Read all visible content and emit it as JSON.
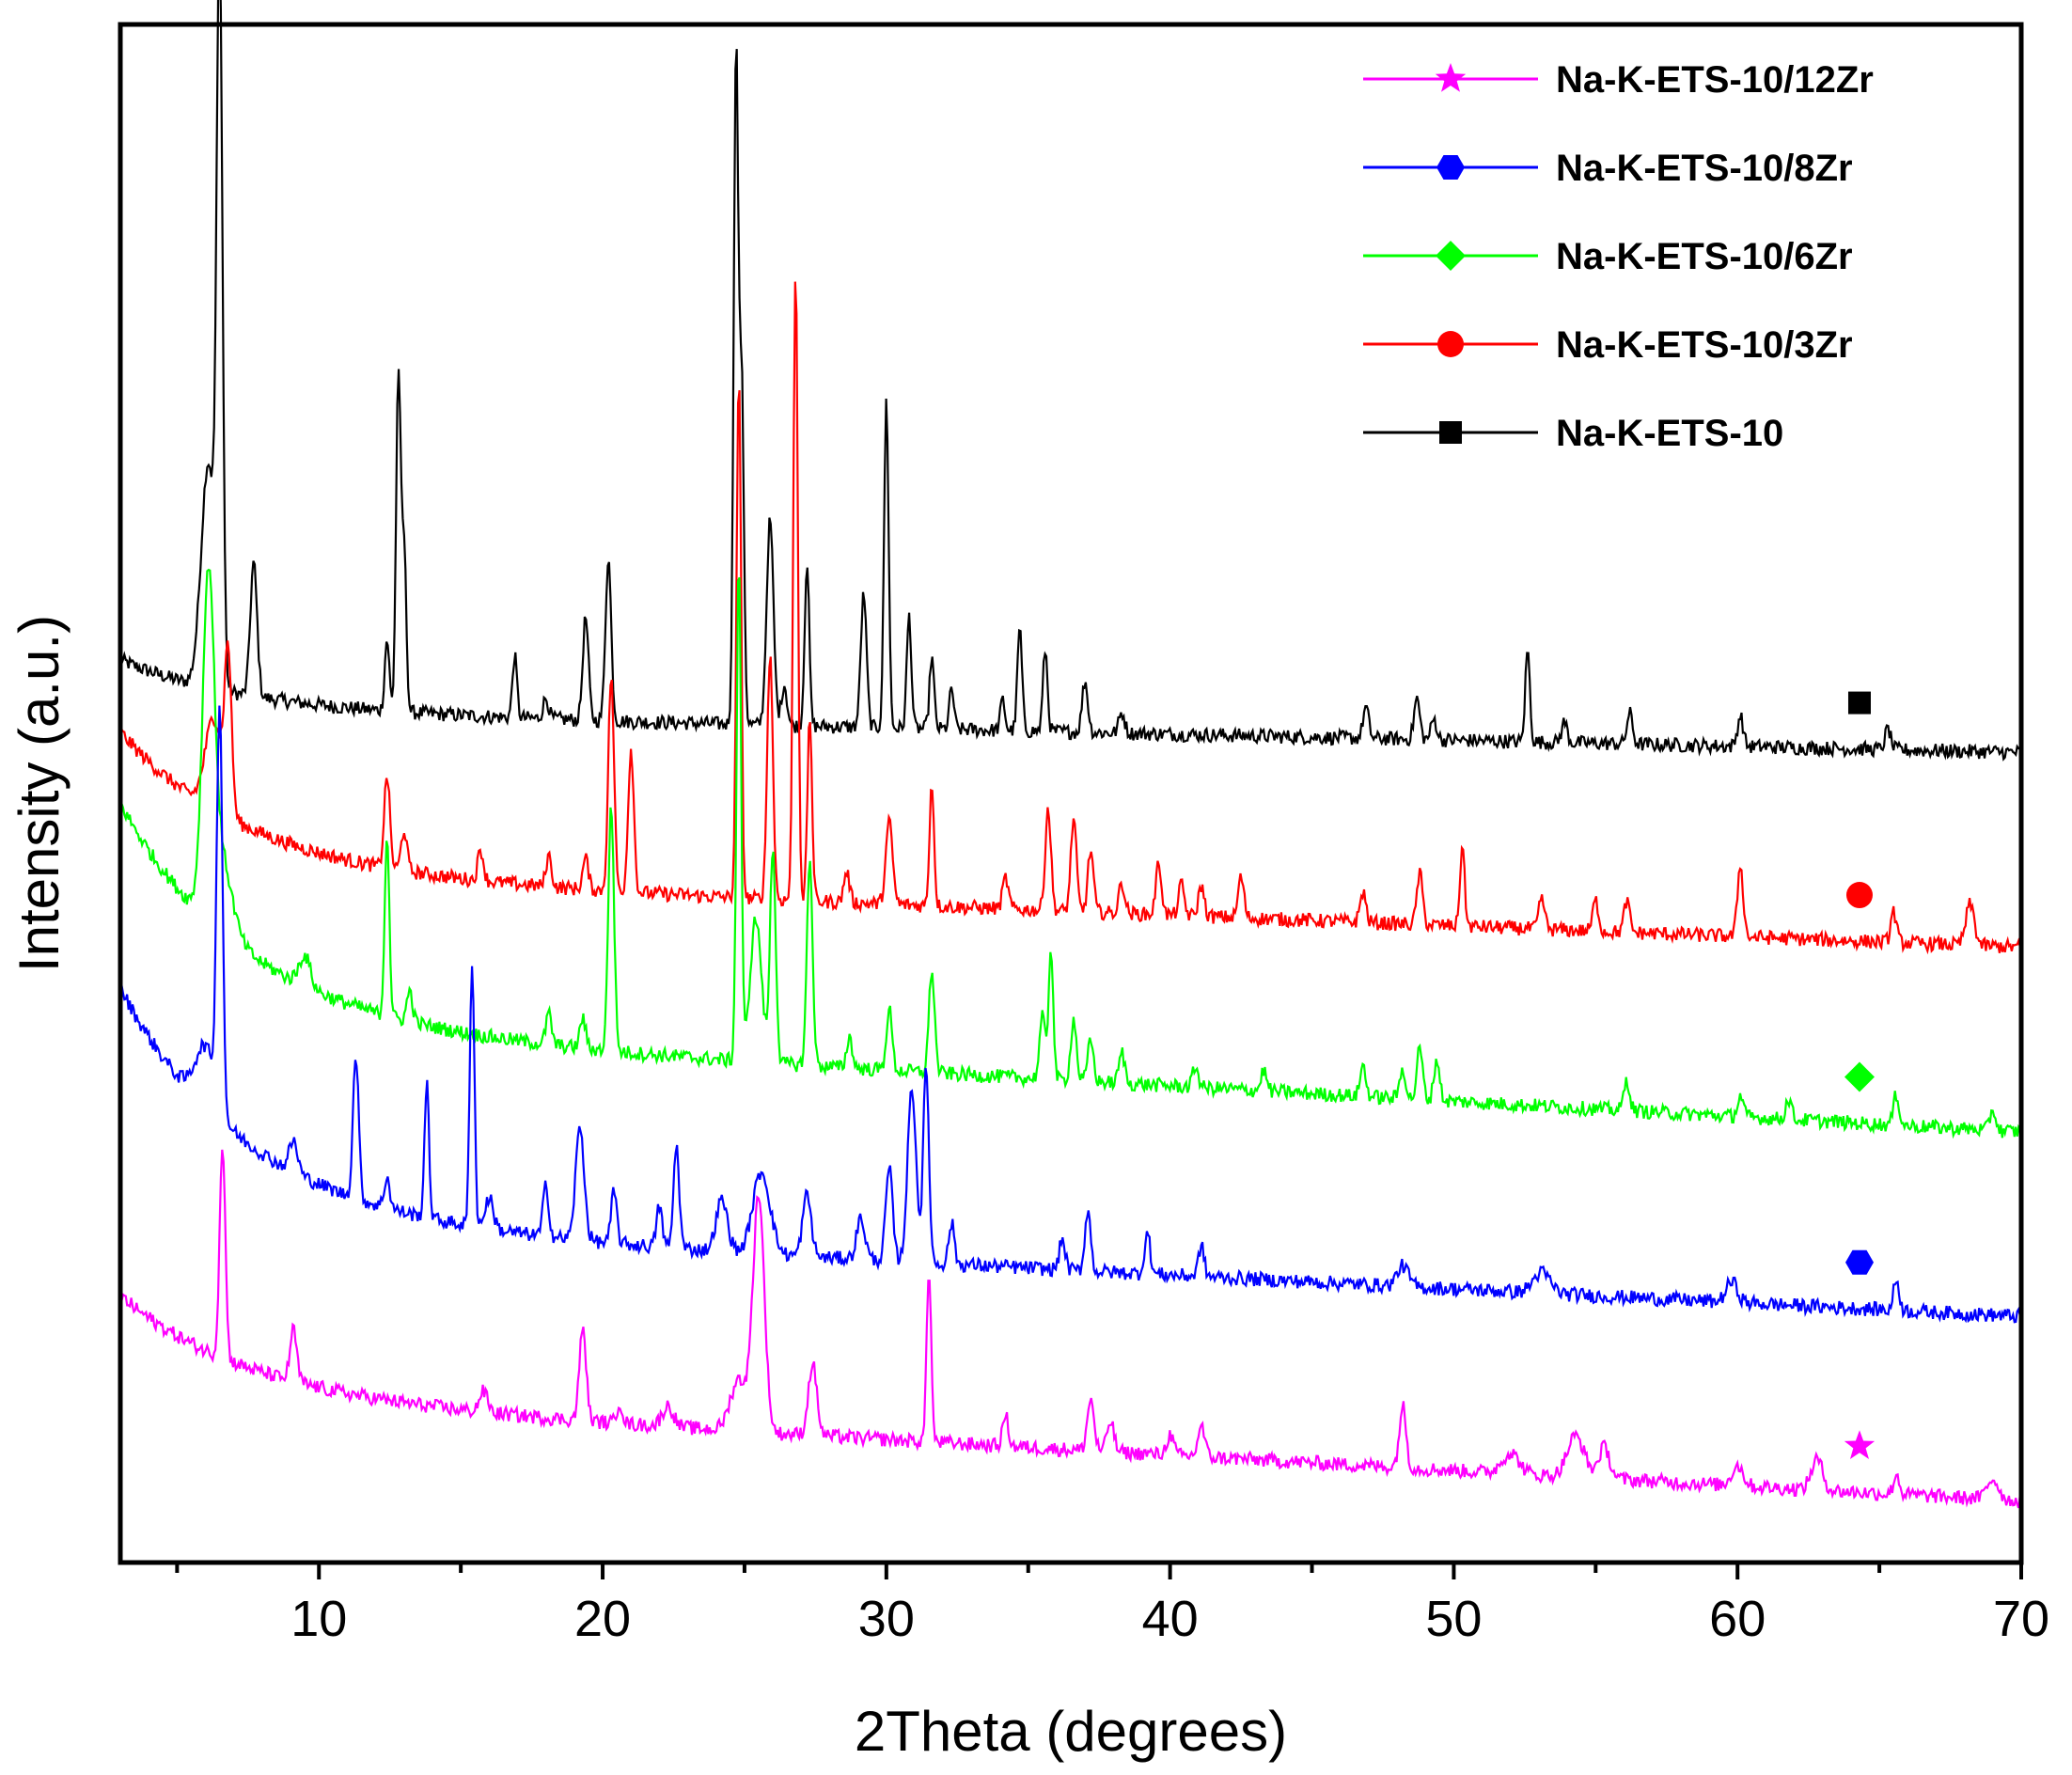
{
  "chart_data": {
    "type": "line",
    "title": "",
    "xlabel": "2Theta (degrees)",
    "ylabel": "Intensity (a.u.)",
    "xlim": [
      3,
      70
    ],
    "ylim": [
      0,
      15
    ],
    "x_ticks": [
      10,
      20,
      30,
      40,
      50,
      60,
      70
    ],
    "x_tick_labels": [
      "10",
      "20",
      "30",
      "40",
      "50",
      "60",
      "70"
    ],
    "y_ticks_shown": false,
    "grid": false,
    "legend_position": "top-right",
    "legend_order": [
      "Na-K-ETS-10/12Zr",
      "Na-K-ETS-10/8Zr",
      "Na-K-ETS-10/6Zr",
      "Na-K-ETS-10/3Zr",
      "Na-K-ETS-10"
    ],
    "series": [
      {
        "name": "Na-K-ETS-10",
        "color": "#000000",
        "marker": "square",
        "marker_x": 64.3,
        "baseline_start": 8.3,
        "baseline_end": 7.9,
        "decay": 0.5,
        "peaks": [
          [
            6.1,
            2.2,
            0.25
          ],
          [
            6.5,
            6.8,
            0.1
          ],
          [
            7.7,
            1.3,
            0.12
          ],
          [
            12.4,
            0.7,
            0.08
          ],
          [
            12.8,
            3.3,
            0.08
          ],
          [
            13.0,
            1.6,
            0.08
          ],
          [
            16.9,
            0.6,
            0.08
          ],
          [
            18.0,
            0.2,
            0.1
          ],
          [
            19.4,
            1.0,
            0.1
          ],
          [
            20.2,
            1.6,
            0.1
          ],
          [
            24.7,
            6.6,
            0.08
          ],
          [
            24.9,
            3.3,
            0.08
          ],
          [
            25.9,
            2.0,
            0.12
          ],
          [
            26.4,
            0.4,
            0.1
          ],
          [
            27.2,
            1.6,
            0.08
          ],
          [
            29.2,
            1.3,
            0.1
          ],
          [
            30.0,
            3.2,
            0.08
          ],
          [
            30.8,
            1.1,
            0.08
          ],
          [
            31.6,
            0.7,
            0.08
          ],
          [
            32.3,
            0.4,
            0.08
          ],
          [
            34.1,
            0.3,
            0.08
          ],
          [
            34.7,
            1.0,
            0.08
          ],
          [
            35.6,
            0.8,
            0.08
          ],
          [
            37.0,
            0.5,
            0.1
          ],
          [
            38.3,
            0.2,
            0.1
          ],
          [
            46.9,
            0.3,
            0.1
          ],
          [
            48.7,
            0.4,
            0.1
          ],
          [
            49.3,
            0.2,
            0.1
          ],
          [
            52.6,
            0.9,
            0.08
          ],
          [
            53.9,
            0.2,
            0.1
          ],
          [
            56.2,
            0.3,
            0.1
          ],
          [
            60.1,
            0.3,
            0.1
          ],
          [
            65.3,
            0.2,
            0.1
          ]
        ]
      },
      {
        "name": "Na-K-ETS-10/3Zr",
        "color": "#ff0000",
        "marker": "circle",
        "marker_x": 64.3,
        "baseline_start": 6.7,
        "baseline_end": 6.0,
        "decay": 1.4,
        "peaks": [
          [
            6.3,
            0.9,
            0.3
          ],
          [
            6.8,
            1.5,
            0.12
          ],
          [
            12.4,
            0.9,
            0.1
          ],
          [
            13.0,
            0.4,
            0.1
          ],
          [
            15.7,
            0.3,
            0.1
          ],
          [
            18.1,
            0.3,
            0.1
          ],
          [
            19.4,
            0.3,
            0.1
          ],
          [
            20.3,
            2.1,
            0.1
          ],
          [
            21.0,
            1.4,
            0.1
          ],
          [
            24.8,
            5.1,
            0.08
          ],
          [
            25.9,
            2.4,
            0.1
          ],
          [
            26.8,
            6.2,
            0.08
          ],
          [
            27.3,
            1.8,
            0.08
          ],
          [
            28.6,
            0.3,
            0.1
          ],
          [
            30.1,
            0.8,
            0.12
          ],
          [
            31.6,
            1.2,
            0.08
          ],
          [
            34.2,
            0.3,
            0.1
          ],
          [
            35.7,
            1.0,
            0.1
          ],
          [
            36.6,
            0.9,
            0.1
          ],
          [
            37.2,
            0.6,
            0.1
          ],
          [
            38.3,
            0.3,
            0.1
          ],
          [
            39.6,
            0.5,
            0.1
          ],
          [
            40.4,
            0.3,
            0.1
          ],
          [
            41.1,
            0.3,
            0.1
          ],
          [
            42.5,
            0.4,
            0.1
          ],
          [
            46.8,
            0.3,
            0.1
          ],
          [
            48.8,
            0.5,
            0.1
          ],
          [
            50.3,
            0.8,
            0.08
          ],
          [
            53.1,
            0.3,
            0.1
          ],
          [
            55.0,
            0.3,
            0.1
          ],
          [
            56.1,
            0.3,
            0.1
          ],
          [
            60.1,
            0.7,
            0.1
          ],
          [
            65.5,
            0.3,
            0.1
          ],
          [
            68.2,
            0.4,
            0.15
          ]
        ]
      },
      {
        "name": "Na-K-ETS-10/6Zr",
        "color": "#00ff00",
        "marker": "diamond",
        "marker_x": 64.3,
        "baseline_start": 5.2,
        "baseline_end": 4.2,
        "decay": 2.2,
        "peaks": [
          [
            6.1,
            3.0,
            0.2
          ],
          [
            6.5,
            0.8,
            0.4
          ],
          [
            9.5,
            0.3,
            0.2
          ],
          [
            12.4,
            1.8,
            0.08
          ],
          [
            13.2,
            0.3,
            0.1
          ],
          [
            18.1,
            0.3,
            0.1
          ],
          [
            19.3,
            0.3,
            0.1
          ],
          [
            20.3,
            2.4,
            0.1
          ],
          [
            24.8,
            4.9,
            0.08
          ],
          [
            25.4,
            1.4,
            0.2
          ],
          [
            26.0,
            2.1,
            0.1
          ],
          [
            27.3,
            2.0,
            0.1
          ],
          [
            28.7,
            0.3,
            0.1
          ],
          [
            30.1,
            0.6,
            0.1
          ],
          [
            31.6,
            1.0,
            0.1
          ],
          [
            35.5,
            0.6,
            0.1
          ],
          [
            35.8,
            1.3,
            0.08
          ],
          [
            36.6,
            0.6,
            0.1
          ],
          [
            37.2,
            0.4,
            0.1
          ],
          [
            38.3,
            0.3,
            0.1
          ],
          [
            40.9,
            0.2,
            0.1
          ],
          [
            43.3,
            0.2,
            0.1
          ],
          [
            46.8,
            0.3,
            0.1
          ],
          [
            48.2,
            0.3,
            0.1
          ],
          [
            48.8,
            0.5,
            0.1
          ],
          [
            49.4,
            0.4,
            0.1
          ],
          [
            56.1,
            0.3,
            0.1
          ],
          [
            60.1,
            0.2,
            0.1
          ],
          [
            61.8,
            0.2,
            0.1
          ],
          [
            65.6,
            0.3,
            0.1
          ],
          [
            69.0,
            0.2,
            0.1
          ]
        ]
      },
      {
        "name": "Na-K-ETS-10/8Zr",
        "color": "#0000ff",
        "marker": "hexagon",
        "marker_x": 64.3,
        "baseline_start": 3.3,
        "baseline_end": 2.4,
        "decay": 2.3,
        "peaks": [
          [
            6.0,
            0.6,
            0.35
          ],
          [
            6.5,
            3.9,
            0.1
          ],
          [
            9.1,
            0.3,
            0.15
          ],
          [
            11.3,
            1.4,
            0.1
          ],
          [
            12.4,
            0.3,
            0.1
          ],
          [
            13.8,
            1.3,
            0.08
          ],
          [
            15.4,
            2.6,
            0.08
          ],
          [
            16.0,
            0.3,
            0.15
          ],
          [
            18.0,
            0.5,
            0.1
          ],
          [
            19.2,
            1.1,
            0.15
          ],
          [
            20.4,
            0.5,
            0.1
          ],
          [
            22.0,
            0.4,
            0.1
          ],
          [
            22.6,
            1.0,
            0.1
          ],
          [
            24.2,
            0.5,
            0.2
          ],
          [
            25.6,
            0.8,
            0.3
          ],
          [
            27.2,
            0.6,
            0.15
          ],
          [
            29.1,
            0.4,
            0.15
          ],
          [
            30.1,
            0.9,
            0.12
          ],
          [
            30.9,
            1.7,
            0.15
          ],
          [
            31.4,
            1.9,
            0.1
          ],
          [
            32.3,
            0.4,
            0.1
          ],
          [
            36.2,
            0.3,
            0.1
          ],
          [
            37.1,
            0.6,
            0.1
          ],
          [
            39.2,
            0.4,
            0.1
          ],
          [
            41.1,
            0.3,
            0.1
          ],
          [
            48.2,
            0.2,
            0.2
          ],
          [
            53.1,
            0.2,
            0.3
          ],
          [
            59.8,
            0.2,
            0.2
          ],
          [
            65.6,
            0.3,
            0.1
          ]
        ]
      },
      {
        "name": "Na-K-ETS-10/12Zr",
        "color": "#ff00ff",
        "marker": "star",
        "marker_x": 64.3,
        "baseline_start": 1.6,
        "baseline_end": 0.6,
        "decay": 1.0,
        "peaks": [
          [
            6.6,
            2.1,
            0.1
          ],
          [
            9.1,
            0.5,
            0.12
          ],
          [
            15.8,
            0.2,
            0.15
          ],
          [
            19.3,
            0.9,
            0.12
          ],
          [
            20.6,
            0.2,
            0.1
          ],
          [
            22.3,
            0.2,
            0.2
          ],
          [
            24.8,
            0.5,
            0.3
          ],
          [
            25.5,
            2.3,
            0.2
          ],
          [
            27.4,
            0.7,
            0.15
          ],
          [
            31.5,
            1.7,
            0.08
          ],
          [
            34.2,
            0.3,
            0.1
          ],
          [
            37.2,
            0.5,
            0.12
          ],
          [
            37.9,
            0.3,
            0.12
          ],
          [
            40.0,
            0.2,
            0.12
          ],
          [
            41.1,
            0.3,
            0.12
          ],
          [
            48.2,
            0.6,
            0.12
          ],
          [
            52.0,
            0.2,
            0.3
          ],
          [
            54.3,
            0.4,
            0.3
          ],
          [
            55.3,
            0.3,
            0.2
          ],
          [
            60.0,
            0.2,
            0.2
          ],
          [
            62.8,
            0.3,
            0.2
          ],
          [
            65.6,
            0.2,
            0.1
          ],
          [
            69.0,
            0.2,
            0.2
          ]
        ]
      }
    ]
  }
}
